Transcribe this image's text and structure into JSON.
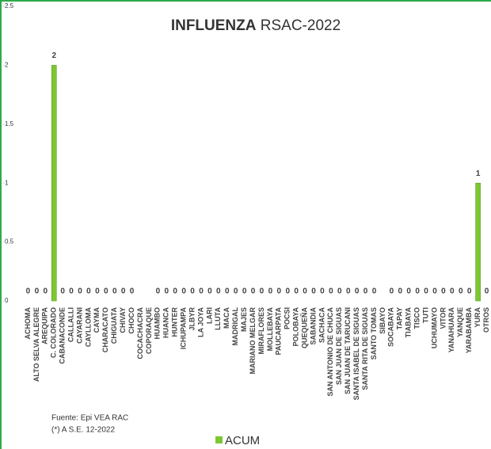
{
  "chart_data": {
    "type": "bar",
    "title": [
      "INFLUENZA",
      "RSAC-2022"
    ],
    "categories": [
      "ACHOMA",
      "ALTO SELVA ALEGRE",
      "AREQUIPA",
      "C. COLORADO",
      "CABANACONDE",
      "CALLALLI",
      "CAYARANI",
      "CAYLLOMA",
      "CAYMA",
      "CHARACATO",
      "CHIGUATA",
      "CHIVAY",
      "CHOCO",
      "COCACHACRA",
      "COPORAQUE",
      "HUAMBO",
      "HUANCA",
      "HUNTER",
      "ICHUPAMPA",
      "JLBYR",
      "LA JOYA",
      "LARI",
      "LLUTA",
      "MACA",
      "MADRIGAL",
      "MAJES",
      "MARIANO MELGAR",
      "MIRAFLORES",
      "MOLLEBAYA",
      "PAUCARPATA",
      "POCSI",
      "POLOBAYA",
      "QUEQUEÑA",
      "SABANDIA",
      "SACHACA",
      "SAN ANTONIO DE CHUCA",
      "SAN JUAN DE SIGUAS",
      "SAN JUAN DE TARUCANI",
      "SANTA ISABEL DE SIGUAS",
      "SANTA RITA DE SIGUAS",
      "SANTO TOMAS",
      "SIBAYO",
      "SOCABAYA",
      "TAPAY",
      "TIABAYA",
      "TISCO",
      "TUTI",
      "UCHUMAYO",
      "VITOR",
      "YANAHUARA",
      "YANQUE",
      "YARABAMBA",
      "YURA",
      "OTROS"
    ],
    "series": [
      {
        "name": "ACUM",
        "color": "#7dc832",
        "values": [
          0,
          0,
          0,
          2,
          0,
          0,
          0,
          0,
          0,
          0,
          0,
          0,
          0,
          null,
          null,
          0,
          0,
          0,
          0,
          0,
          0,
          0,
          0,
          0,
          0,
          0,
          0,
          0,
          0,
          0,
          0,
          0,
          0,
          0,
          0,
          0,
          0,
          0,
          0,
          0,
          0,
          null,
          0,
          0,
          0,
          0,
          0,
          0,
          0,
          0,
          0,
          0,
          1,
          0
        ]
      }
    ],
    "ylim": [
      0,
      2.5
    ],
    "yticks": [
      0,
      0.5,
      1,
      1.5,
      2,
      2.5
    ],
    "notes": [
      "Fuente:  Epi VEA RAC",
      "(*) A S.E. 12-2022"
    ]
  }
}
